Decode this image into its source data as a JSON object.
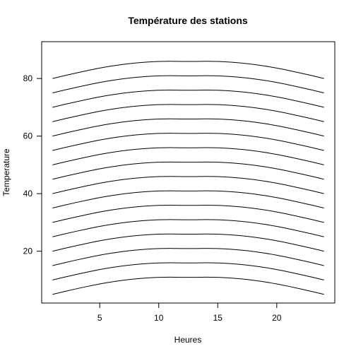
{
  "chart_data": {
    "type": "line",
    "title": "Température des stations",
    "xlabel": "Heures",
    "ylabel": "Temperature",
    "xlim": [
      0.08,
      24.92
    ],
    "ylim": [
      2.0,
      92.8
    ],
    "x_ticks": [
      5,
      10,
      15,
      20
    ],
    "y_ticks": [
      20,
      40,
      60,
      80
    ],
    "grid": false,
    "legend": "none",
    "line_color": "#000000",
    "x": [
      1,
      2,
      3,
      4,
      5,
      6,
      7,
      8,
      9,
      10,
      11,
      12,
      13,
      14,
      15,
      16,
      17,
      18,
      19,
      20,
      21,
      22,
      23,
      24
    ],
    "series": [
      {
        "values": [
          5.0,
          5.98,
          6.92,
          7.81,
          8.63,
          9.33,
          9.92,
          10.38,
          10.72,
          10.93,
          11.0,
          10.93,
          10.93,
          11.0,
          10.93,
          10.72,
          10.38,
          9.92,
          9.33,
          8.63,
          7.81,
          6.92,
          5.98,
          5.0
        ]
      },
      {
        "values": [
          10.0,
          10.98,
          11.92,
          12.81,
          13.63,
          14.33,
          14.92,
          15.38,
          15.72,
          15.93,
          16.0,
          15.93,
          15.93,
          16.0,
          15.93,
          15.72,
          15.38,
          14.92,
          14.33,
          13.63,
          12.81,
          11.92,
          10.98,
          10.0
        ]
      },
      {
        "values": [
          15.0,
          15.98,
          16.92,
          17.81,
          18.63,
          19.33,
          19.92,
          20.38,
          20.72,
          20.93,
          21.0,
          20.93,
          20.93,
          21.0,
          20.93,
          20.72,
          20.38,
          19.92,
          19.33,
          18.63,
          17.81,
          16.92,
          15.98,
          15.0
        ]
      },
      {
        "values": [
          20.0,
          20.98,
          21.92,
          22.81,
          23.63,
          24.33,
          24.92,
          25.38,
          25.72,
          25.93,
          26.0,
          25.93,
          25.93,
          26.0,
          25.93,
          25.72,
          25.38,
          24.92,
          24.33,
          23.63,
          22.81,
          21.92,
          20.98,
          20.0
        ]
      },
      {
        "values": [
          25.0,
          25.98,
          26.92,
          27.81,
          28.63,
          29.33,
          29.92,
          30.38,
          30.72,
          30.93,
          31.0,
          30.93,
          30.93,
          31.0,
          30.93,
          30.72,
          30.38,
          29.92,
          29.33,
          28.63,
          27.81,
          26.92,
          25.98,
          25.0
        ]
      },
      {
        "values": [
          30.0,
          30.98,
          31.92,
          32.81,
          33.63,
          34.33,
          34.92,
          35.38,
          35.72,
          35.93,
          36.0,
          35.93,
          35.93,
          36.0,
          35.93,
          35.72,
          35.38,
          34.92,
          34.33,
          33.63,
          32.81,
          31.92,
          30.98,
          30.0
        ]
      },
      {
        "values": [
          35.0,
          35.98,
          36.92,
          37.81,
          38.63,
          39.33,
          39.92,
          40.38,
          40.72,
          40.93,
          41.0,
          40.93,
          40.93,
          41.0,
          40.93,
          40.72,
          40.38,
          39.92,
          39.33,
          38.63,
          37.81,
          36.92,
          35.98,
          35.0
        ]
      },
      {
        "values": [
          40.0,
          40.98,
          41.92,
          42.81,
          43.63,
          44.33,
          44.92,
          45.38,
          45.72,
          45.93,
          46.0,
          45.93,
          45.93,
          46.0,
          45.93,
          45.72,
          45.38,
          44.92,
          44.33,
          43.63,
          42.81,
          41.92,
          40.98,
          40.0
        ]
      },
      {
        "values": [
          45.0,
          45.98,
          46.92,
          47.81,
          48.63,
          49.33,
          49.92,
          50.38,
          50.72,
          50.93,
          51.0,
          50.93,
          50.93,
          51.0,
          50.93,
          50.72,
          50.38,
          49.92,
          49.33,
          48.63,
          47.81,
          46.92,
          45.98,
          45.0
        ]
      },
      {
        "values": [
          50.0,
          50.98,
          51.92,
          52.81,
          53.63,
          54.33,
          54.92,
          55.38,
          55.72,
          55.93,
          56.0,
          55.93,
          55.93,
          56.0,
          55.93,
          55.72,
          55.38,
          54.92,
          54.33,
          53.63,
          52.81,
          51.92,
          50.98,
          50.0
        ]
      },
      {
        "values": [
          55.0,
          55.98,
          56.92,
          57.81,
          58.63,
          59.33,
          59.92,
          60.38,
          60.72,
          60.93,
          61.0,
          60.93,
          60.93,
          61.0,
          60.93,
          60.72,
          60.38,
          59.92,
          59.33,
          58.63,
          57.81,
          56.92,
          55.98,
          55.0
        ]
      },
      {
        "values": [
          60.0,
          60.98,
          61.92,
          62.81,
          63.63,
          64.33,
          64.92,
          65.38,
          65.72,
          65.93,
          66.0,
          65.93,
          65.93,
          66.0,
          65.93,
          65.72,
          65.38,
          64.92,
          64.33,
          63.63,
          62.81,
          61.92,
          60.98,
          60.0
        ]
      },
      {
        "values": [
          65.0,
          65.98,
          66.92,
          67.81,
          68.63,
          69.33,
          69.92,
          70.38,
          70.72,
          70.93,
          71.0,
          70.93,
          70.93,
          71.0,
          70.93,
          70.72,
          70.38,
          69.92,
          69.33,
          68.63,
          67.81,
          66.92,
          65.98,
          65.0
        ]
      },
      {
        "values": [
          70.0,
          70.98,
          71.92,
          72.81,
          73.63,
          74.33,
          74.92,
          75.38,
          75.72,
          75.93,
          76.0,
          75.93,
          75.93,
          76.0,
          75.93,
          75.72,
          75.38,
          74.92,
          74.33,
          73.63,
          72.81,
          71.92,
          70.98,
          70.0
        ]
      },
      {
        "values": [
          75.0,
          75.98,
          76.92,
          77.81,
          78.63,
          79.33,
          79.92,
          80.38,
          80.72,
          80.93,
          81.0,
          80.93,
          80.93,
          81.0,
          80.93,
          80.72,
          80.38,
          79.92,
          79.33,
          78.63,
          77.81,
          76.92,
          75.98,
          75.0
        ]
      },
      {
        "values": [
          80.0,
          80.98,
          81.92,
          82.81,
          83.63,
          84.33,
          84.92,
          85.38,
          85.72,
          85.93,
          86.0,
          85.93,
          85.93,
          86.0,
          85.93,
          85.72,
          85.38,
          84.92,
          84.33,
          83.63,
          82.81,
          81.92,
          80.98,
          80.0
        ]
      }
    ]
  }
}
